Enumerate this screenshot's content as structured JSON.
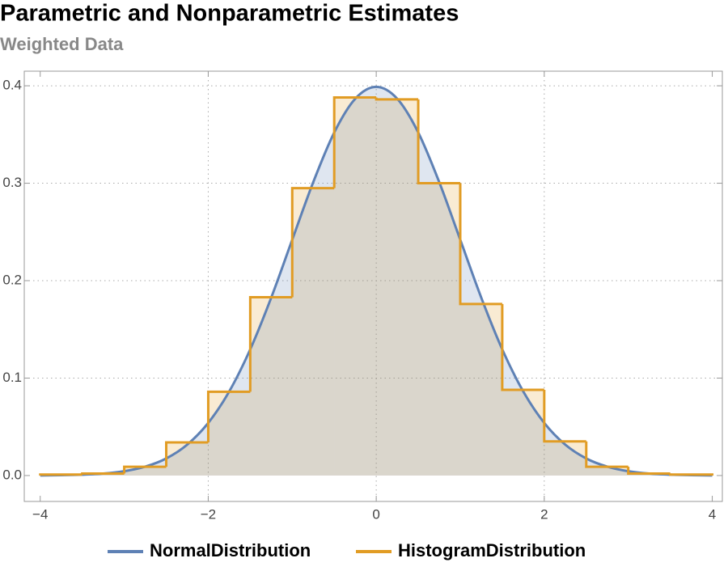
{
  "chart_data": {
    "type": "density-histogram",
    "title": "Parametric and Nonparametric Estimates",
    "subtitle": "Weighted Data",
    "xlim": [
      -4.19,
      4.12
    ],
    "ylim": [
      -0.0266,
      0.415
    ],
    "xticks": [
      {
        "value": -4,
        "label": "−4"
      },
      {
        "value": -2,
        "label": "−2"
      },
      0,
      2,
      4
    ],
    "yticks": [
      {
        "value": 0,
        "label": "0.0"
      },
      0.1,
      0.2,
      0.3,
      0.4
    ],
    "xgrid": [
      -2,
      0,
      2
    ],
    "ygrid": [
      0.1,
      0.2,
      0.3,
      0.4
    ],
    "curve": {
      "name": "NormalDistribution",
      "color": "#5e81b5",
      "x": [
        -4,
        -3.75,
        -3.5,
        -3.25,
        -3,
        -2.75,
        -2.5,
        -2.25,
        -2,
        -1.75,
        -1.5,
        -1.25,
        -1,
        -0.75,
        -0.5,
        -0.25,
        0,
        0.25,
        0.5,
        0.75,
        1,
        1.25,
        1.5,
        1.75,
        2,
        2.25,
        2.5,
        2.75,
        3,
        3.25,
        3.5,
        3.75,
        4
      ],
      "values": [
        0.0001,
        0.0004,
        0.0009,
        0.002,
        0.0044,
        0.0091,
        0.0175,
        0.0317,
        0.054,
        0.0863,
        0.1295,
        0.1826,
        0.242,
        0.3011,
        0.3521,
        0.3867,
        0.3989,
        0.3867,
        0.3521,
        0.3011,
        0.242,
        0.1826,
        0.1295,
        0.0863,
        0.054,
        0.0317,
        0.0175,
        0.0091,
        0.0044,
        0.002,
        0.0009,
        0.0004,
        0.0001
      ]
    },
    "histogram": {
      "name": "HistogramDistribution",
      "color": "#e19c24",
      "bins": [
        -4,
        -3.5,
        -3,
        -2.5,
        -2,
        -1.5,
        -1,
        -0.5,
        0,
        0.5,
        1,
        1.5,
        2,
        2.5,
        3,
        3.5,
        4
      ],
      "values": [
        0.001,
        0.002,
        0.009,
        0.034,
        0.086,
        0.183,
        0.295,
        0.388,
        0.386,
        0.3,
        0.176,
        0.088,
        0.035,
        0.009,
        0.002,
        0.001
      ]
    }
  }
}
